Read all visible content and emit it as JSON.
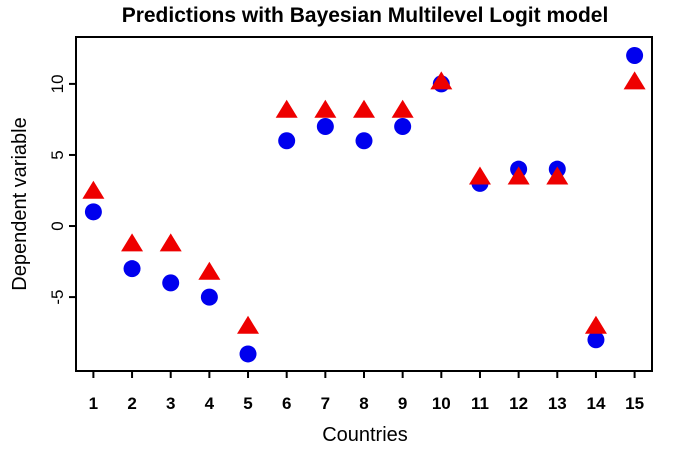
{
  "chart_data": {
    "type": "scatter",
    "title": "Predictions with Bayesian Multilevel Logit model",
    "xlabel": "Countries",
    "ylabel": "Dependent variable",
    "categories": [
      "1",
      "2",
      "3",
      "4",
      "5",
      "6",
      "7",
      "8",
      "9",
      "10",
      "11",
      "12",
      "13",
      "14",
      "15"
    ],
    "xlim": [
      0.55,
      15.45
    ],
    "ylim": [
      -10.2,
      13.3
    ],
    "yticks": [
      -5,
      0,
      5,
      10
    ],
    "grid": false,
    "legend": "none",
    "series": [
      {
        "marker": "circle",
        "color": "#0000ee",
        "values": [
          1,
          -3,
          -4,
          -5,
          -9,
          6,
          7,
          6,
          7,
          10,
          3,
          4,
          4,
          -8,
          12
        ]
      },
      {
        "marker": "triangle",
        "color": "#ee0000",
        "values": [
          2.4,
          -1.3,
          -1.3,
          -3.3,
          -7.1,
          8.1,
          8.1,
          8.1,
          8.1,
          10.1,
          3.4,
          3.4,
          3.4,
          -7.1,
          10.1
        ]
      }
    ]
  }
}
